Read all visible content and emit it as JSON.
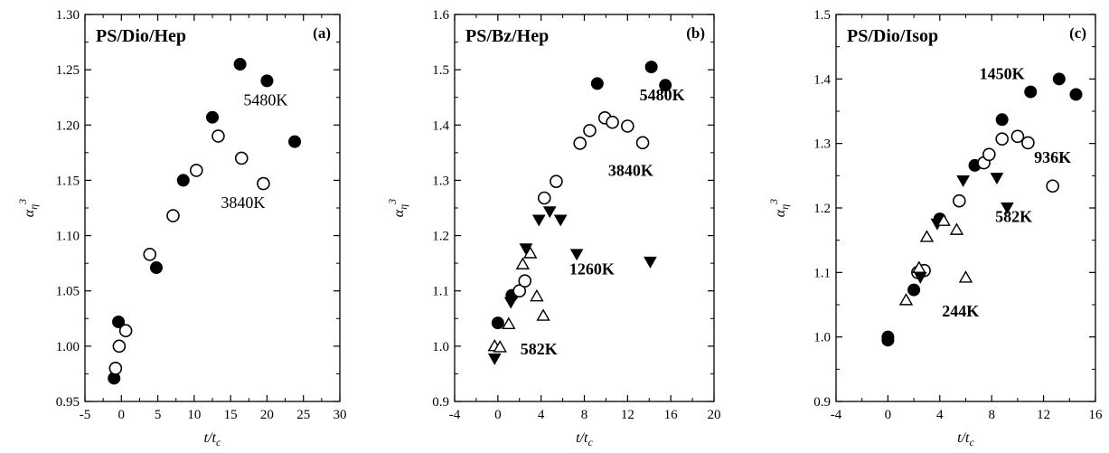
{
  "chart_data": [
    {
      "id": "a",
      "type": "scatter",
      "title": "PS/Dio/Hep",
      "panel_label": "(a)",
      "xlabel": "t/t_c",
      "ylabel": "α_η^3",
      "xlim": [
        -5,
        30
      ],
      "ylim": [
        0.95,
        1.3
      ],
      "xticks": [
        -5,
        0,
        5,
        10,
        15,
        20,
        25,
        30
      ],
      "yticks": [
        0.95,
        1.0,
        1.05,
        1.1,
        1.15,
        1.2,
        1.25,
        1.3
      ],
      "tick_decimals": 2,
      "annotation_style": "normal",
      "series": [
        {
          "name": "5480K",
          "marker": "filled-circle",
          "points": [
            [
              -1.0,
              0.971
            ],
            [
              -0.4,
              1.022
            ],
            [
              4.8,
              1.071
            ],
            [
              8.5,
              1.15
            ],
            [
              12.5,
              1.207
            ],
            [
              16.3,
              1.255
            ],
            [
              20.0,
              1.24
            ],
            [
              23.8,
              1.185
            ]
          ]
        },
        {
          "name": "3840K",
          "marker": "open-circle",
          "points": [
            [
              -0.8,
              0.98
            ],
            [
              -0.3,
              1.0
            ],
            [
              0.6,
              1.014
            ],
            [
              3.9,
              1.083
            ],
            [
              7.1,
              1.118
            ],
            [
              10.3,
              1.159
            ],
            [
              13.3,
              1.19
            ],
            [
              16.5,
              1.17
            ],
            [
              19.5,
              1.147
            ]
          ]
        }
      ],
      "annotations": [
        {
          "text": "5480K",
          "x": 19.8,
          "y": 1.218
        },
        {
          "text": "3840K",
          "x": 16.7,
          "y": 1.125
        }
      ]
    },
    {
      "id": "b",
      "type": "scatter",
      "title": "PS/Bz/Hep",
      "panel_label": "(b)",
      "xlabel": "t/t_c",
      "ylabel": "α_η^3",
      "xlim": [
        -4,
        20
      ],
      "ylim": [
        0.9,
        1.6
      ],
      "xticks": [
        -4,
        0,
        4,
        8,
        12,
        16,
        20
      ],
      "yticks": [
        0.9,
        1.0,
        1.1,
        1.2,
        1.3,
        1.4,
        1.5,
        1.6
      ],
      "tick_decimals": 1,
      "annotation_style": "bold",
      "series": [
        {
          "name": "5480K",
          "marker": "filled-circle",
          "points": [
            [
              0.0,
              1.042
            ],
            [
              1.3,
              1.092
            ],
            [
              9.2,
              1.475
            ],
            [
              14.2,
              1.505
            ],
            [
              15.5,
              1.472
            ]
          ]
        },
        {
          "name": "3840K",
          "marker": "open-circle",
          "points": [
            [
              2.0,
              1.1
            ],
            [
              2.5,
              1.118
            ],
            [
              4.3,
              1.268
            ],
            [
              5.4,
              1.298
            ],
            [
              7.6,
              1.367
            ],
            [
              8.5,
              1.39
            ],
            [
              9.9,
              1.413
            ],
            [
              10.6,
              1.405
            ],
            [
              12.0,
              1.398
            ],
            [
              13.4,
              1.368
            ]
          ]
        },
        {
          "name": "1260K",
          "marker": "filled-triangle-down",
          "points": [
            [
              -0.3,
              0.978
            ],
            [
              1.2,
              1.08
            ],
            [
              2.6,
              1.177
            ],
            [
              3.8,
              1.229
            ],
            [
              4.8,
              1.244
            ],
            [
              5.8,
              1.229
            ],
            [
              7.3,
              1.167
            ],
            [
              14.1,
              1.153
            ]
          ]
        },
        {
          "name": "582K",
          "marker": "open-triangle-up",
          "points": [
            [
              -0.3,
              1.0
            ],
            [
              0.2,
              0.998
            ],
            [
              1.0,
              1.04
            ],
            [
              2.3,
              1.148
            ],
            [
              3.0,
              1.168
            ],
            [
              3.6,
              1.09
            ],
            [
              4.2,
              1.055
            ]
          ]
        }
      ],
      "annotations": [
        {
          "text": "5480K",
          "x": 15.2,
          "y": 1.445
        },
        {
          "text": "3840K",
          "x": 12.3,
          "y": 1.308
        },
        {
          "text": "1260K",
          "x": 8.7,
          "y": 1.13
        },
        {
          "text": "582K",
          "x": 3.8,
          "y": 0.985
        }
      ]
    },
    {
      "id": "c",
      "type": "scatter",
      "title": "PS/Dio/Isop",
      "panel_label": "(c)",
      "xlabel": "t/t_c",
      "ylabel": "α_η^3",
      "xlim": [
        -4,
        16
      ],
      "ylim": [
        0.9,
        1.5
      ],
      "xticks": [
        -4,
        0,
        4,
        8,
        12,
        16
      ],
      "yticks": [
        0.9,
        1.0,
        1.1,
        1.2,
        1.3,
        1.4,
        1.5
      ],
      "tick_decimals": 1,
      "annotation_style": "bold",
      "series": [
        {
          "name": "1450K",
          "marker": "filled-circle",
          "points": [
            [
              0.0,
              0.995
            ],
            [
              0.0,
              1.0
            ],
            [
              2.0,
              1.073
            ],
            [
              4.0,
              1.183
            ],
            [
              6.7,
              1.266
            ],
            [
              8.8,
              1.337
            ],
            [
              11.0,
              1.38
            ],
            [
              13.2,
              1.4
            ],
            [
              14.5,
              1.376
            ]
          ]
        },
        {
          "name": "936K",
          "marker": "open-circle",
          "points": [
            [
              2.3,
              1.1
            ],
            [
              2.8,
              1.103
            ],
            [
              5.5,
              1.211
            ],
            [
              7.4,
              1.27
            ],
            [
              7.8,
              1.283
            ],
            [
              8.8,
              1.307
            ],
            [
              10.0,
              1.311
            ],
            [
              10.8,
              1.301
            ],
            [
              12.7,
              1.234
            ]
          ]
        },
        {
          "name": "582K",
          "marker": "filled-triangle-down",
          "points": [
            [
              2.5,
              1.093
            ],
            [
              3.8,
              1.176
            ],
            [
              5.8,
              1.243
            ],
            [
              8.4,
              1.247
            ],
            [
              9.2,
              1.201
            ]
          ]
        },
        {
          "name": "244K",
          "marker": "open-triangle-up",
          "points": [
            [
              1.4,
              1.057
            ],
            [
              2.4,
              1.107
            ],
            [
              3.0,
              1.155
            ],
            [
              4.3,
              1.18
            ],
            [
              5.3,
              1.166
            ],
            [
              6.0,
              1.092
            ]
          ]
        }
      ],
      "annotations": [
        {
          "text": "1450K",
          "x": 8.8,
          "y": 1.4
        },
        {
          "text": "936K",
          "x": 12.7,
          "y": 1.27
        },
        {
          "text": "582K",
          "x": 9.7,
          "y": 1.178
        },
        {
          "text": "244K",
          "x": 5.6,
          "y": 1.032
        }
      ]
    }
  ]
}
